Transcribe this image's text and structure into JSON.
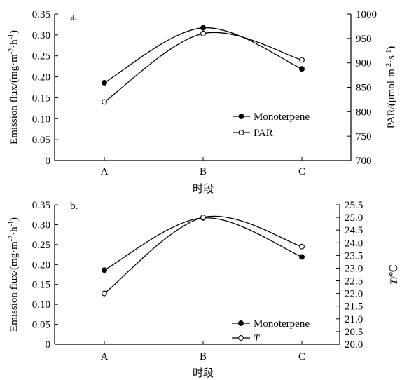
{
  "chart_data": [
    {
      "type": "line",
      "panel_label": "a.",
      "categories": [
        "A",
        "B",
        "C"
      ],
      "xlabel": "时段",
      "ylabel": "Emission flux/(mg·m⁻²·h⁻¹)",
      "ylim": [
        0,
        0.35
      ],
      "yticks": [
        "0",
        "0.05",
        "0.10",
        "0.15",
        "0.20",
        "0.25",
        "0.30",
        "0.35"
      ],
      "y2label": "PAR/(μmol·m⁻²·s⁻¹)",
      "y2lim": [
        700,
        1000
      ],
      "y2ticks": [
        "700",
        "750",
        "800",
        "850",
        "900",
        "950",
        "1000"
      ],
      "series": [
        {
          "name": "Monoterpene",
          "axis": "left",
          "marker": "filled",
          "values": [
            0.186,
            0.317,
            0.219
          ]
        },
        {
          "name": "PAR",
          "axis": "right",
          "marker": "open",
          "values": [
            820,
            960,
            906
          ]
        }
      ],
      "legend_position": "lower-right",
      "grid": false
    },
    {
      "type": "line",
      "panel_label": "b.",
      "categories": [
        "A",
        "B",
        "C"
      ],
      "xlabel": "时段",
      "ylabel": "Emission flux/(mg·m⁻²·h⁻¹)",
      "ylim": [
        0,
        0.35
      ],
      "yticks": [
        "0",
        "0.05",
        "0.10",
        "0.15",
        "0.20",
        "0.25",
        "0.30",
        "0.35"
      ],
      "y2label": "T/℃",
      "y2lim": [
        20.0,
        25.5
      ],
      "y2ticks": [
        "20.0",
        "20.5",
        "21.0",
        "21.5",
        "22.0",
        "22.5",
        "23.0",
        "23.5",
        "24.0",
        "24.5",
        "25.0",
        "25.5"
      ],
      "series": [
        {
          "name": "Monoterpene",
          "axis": "left",
          "marker": "filled",
          "values": [
            0.186,
            0.317,
            0.219
          ]
        },
        {
          "name": "T",
          "axis": "right",
          "marker": "open",
          "values": [
            22.0,
            25.0,
            23.85
          ]
        }
      ],
      "legend_position": "lower-right",
      "grid": false
    }
  ]
}
